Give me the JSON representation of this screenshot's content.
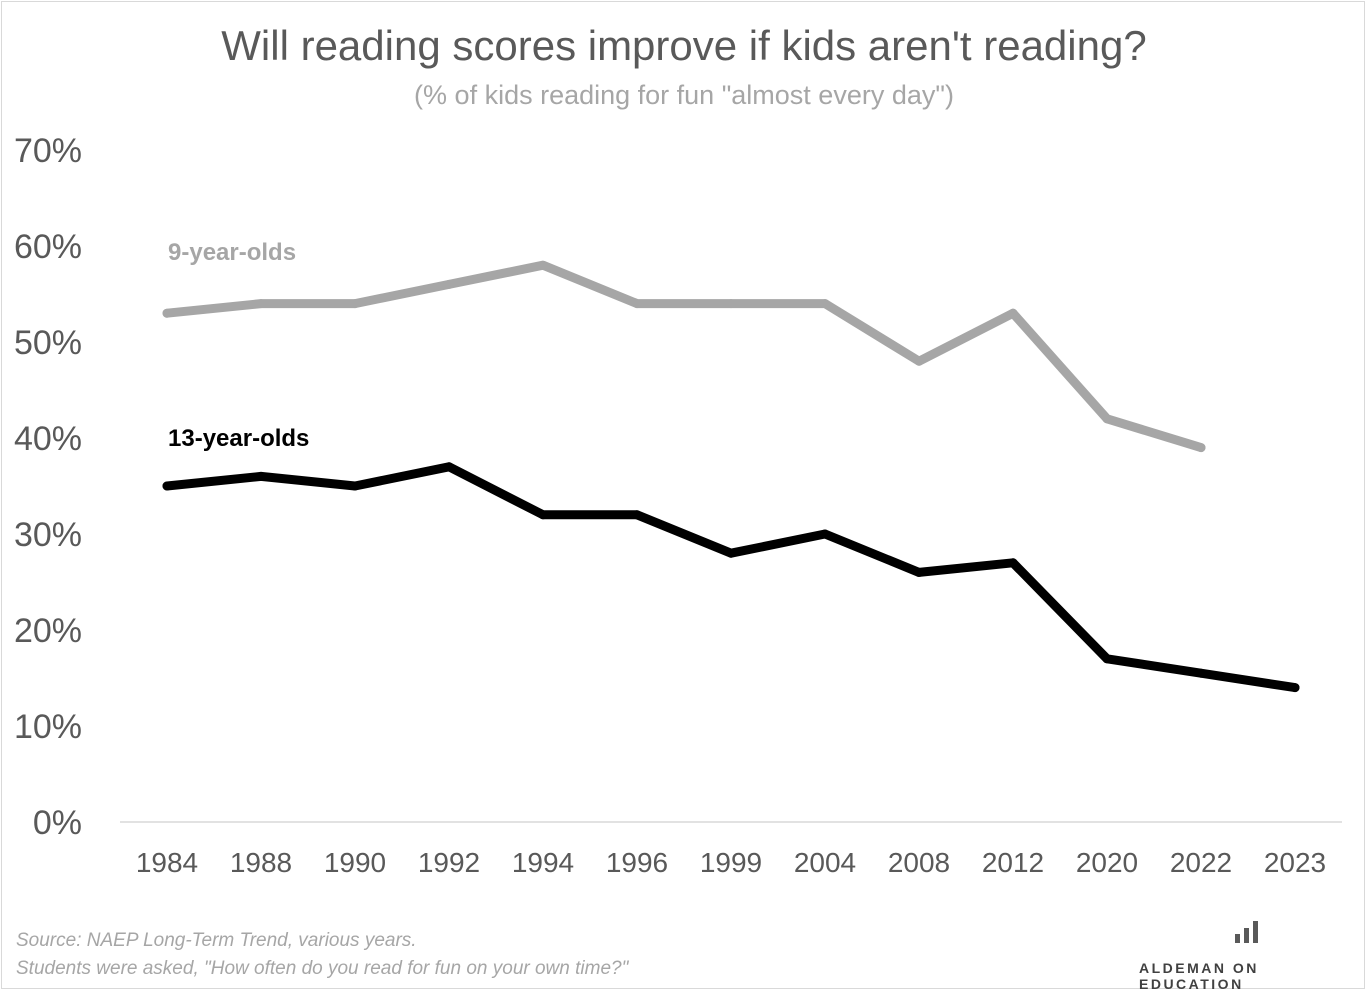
{
  "chart_data": {
    "type": "line",
    "title": "Will reading scores improve if kids aren't reading?",
    "subtitle": "(% of kids reading for fun \"almost every day\")",
    "categories": [
      "1984",
      "1988",
      "1990",
      "1992",
      "1994",
      "1996",
      "1999",
      "2004",
      "2008",
      "2012",
      "2020",
      "2022",
      "2023"
    ],
    "series": [
      {
        "name": "9-year-olds",
        "color": "#a6a6a6",
        "values": [
          53,
          54,
          54,
          56,
          58,
          54,
          54,
          54,
          48,
          53,
          42,
          39,
          null
        ]
      },
      {
        "name": "13-year-olds",
        "color": "#000000",
        "values": [
          35,
          36,
          35,
          37,
          32,
          32,
          28,
          30,
          26,
          27,
          17,
          15.5,
          14
        ]
      }
    ],
    "ylim": [
      0,
      70
    ],
    "yticks": [
      0,
      10,
      20,
      30,
      40,
      50,
      60,
      70
    ],
    "ytick_labels": [
      "0%",
      "10%",
      "20%",
      "30%",
      "40%",
      "50%",
      "60%",
      "70%"
    ],
    "grid": false,
    "xlabel": "",
    "ylabel": ""
  },
  "footer": {
    "source_line1": "Source: NAEP Long-Term Trend, various years.",
    "source_line2": "Students were asked, \"How often do you read for fun on your own time?\"",
    "brand": "ALDEMAN ON EDUCATION",
    "brand_icon": "bar-chart-icon"
  }
}
